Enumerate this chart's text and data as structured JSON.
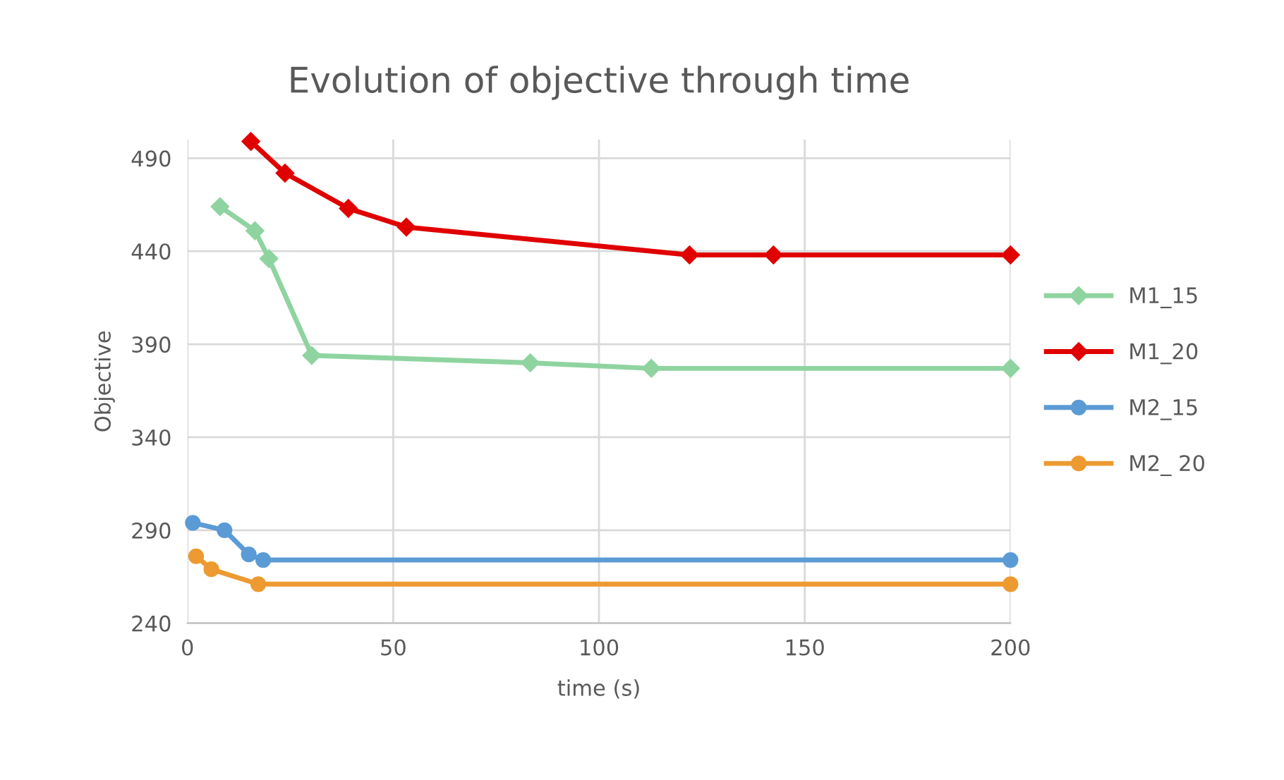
{
  "chart_data": {
    "type": "line",
    "title": "Evolution of objective through time",
    "xlabel": "time (s)",
    "ylabel": "Objective",
    "xlim": [
      0,
      200
    ],
    "xticks": [
      0,
      50,
      100,
      150,
      200
    ],
    "ylim": [
      240,
      500
    ],
    "yticks": [
      240,
      290,
      340,
      390,
      440,
      490
    ],
    "grid": true,
    "legend": "right",
    "series": [
      {
        "name": "M1_15",
        "color": "#8fd4a0",
        "marker": "diamond",
        "x": [
          7.9,
          16.4,
          19.8,
          30.2,
          83.3,
          112.7,
          200
        ],
        "values": [
          464,
          451,
          436,
          384,
          380,
          377,
          377
        ]
      },
      {
        "name": "M1_20",
        "color": "#e00000",
        "marker": "diamond",
        "x": [
          15.4,
          23.7,
          39.1,
          53.2,
          122,
          142.4,
          200
        ],
        "values": [
          499,
          482,
          463,
          453,
          438,
          438,
          438
        ]
      },
      {
        "name": "M2_15",
        "color": "#5b9bd5",
        "marker": "circle",
        "x": [
          1.3,
          9.0,
          14.9,
          18.4,
          200
        ],
        "values": [
          294,
          290,
          277,
          274,
          274
        ]
      },
      {
        "name": "M2_ 20",
        "color": "#ed9a31",
        "marker": "circle",
        "x": [
          2.1,
          5.8,
          17.2,
          200
        ],
        "values": [
          276,
          269,
          261,
          261
        ]
      }
    ]
  }
}
